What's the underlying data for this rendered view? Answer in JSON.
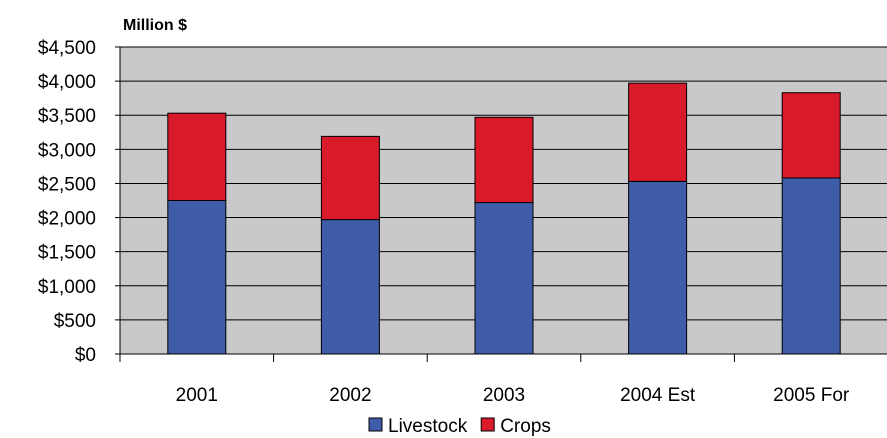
{
  "chart_data": {
    "type": "bar",
    "stacked": true,
    "title": "",
    "ylabel": "Million $",
    "xlabel": "",
    "categories": [
      "2001",
      "2002",
      "2003",
      "2004 Est",
      "2005 For"
    ],
    "series": [
      {
        "name": "Livestock",
        "color": "#3f5ca8",
        "values": [
          2250,
          1970,
          2220,
          2530,
          2580
        ]
      },
      {
        "name": "Crops",
        "color": "#d81a2a",
        "values": [
          1280,
          1220,
          1250,
          1440,
          1250
        ]
      }
    ],
    "ylim": [
      0,
      4500
    ],
    "yticks": [
      "$4,500",
      "$4,000",
      "$3,500",
      "$3,000",
      "$2,500",
      "$2,000",
      "$1,500",
      "$1,000",
      "$500",
      "$0"
    ],
    "ytick_values": [
      4500,
      4000,
      3500,
      3000,
      2500,
      2000,
      1500,
      1000,
      500,
      0
    ],
    "grid": true,
    "plot_background": "#c9c9cc",
    "legend_position": "bottom"
  }
}
